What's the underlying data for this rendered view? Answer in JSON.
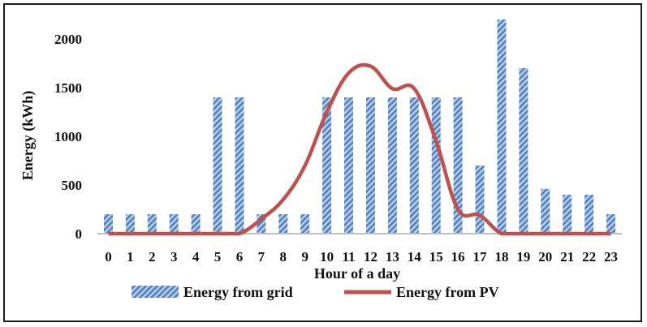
{
  "chart_data": {
    "type": "bar",
    "categories": [
      "0",
      "1",
      "2",
      "3",
      "4",
      "5",
      "6",
      "7",
      "8",
      "9",
      "10",
      "11",
      "12",
      "13",
      "14",
      "15",
      "16",
      "17",
      "18",
      "19",
      "20",
      "21",
      "22",
      "23"
    ],
    "series": [
      {
        "name": "Energy from grid",
        "kind": "bar",
        "color": "#4f81bd",
        "values": [
          200,
          200,
          200,
          200,
          200,
          1400,
          1400,
          200,
          200,
          200,
          1400,
          1400,
          1400,
          1400,
          1400,
          1400,
          1400,
          700,
          2200,
          1700,
          460,
          400,
          400,
          200
        ]
      },
      {
        "name": "Energy from PV",
        "kind": "line",
        "color": "#c0504d",
        "values": [
          0,
          0,
          0,
          0,
          0,
          0,
          0,
          150,
          350,
          700,
          1250,
          1650,
          1720,
          1490,
          1490,
          950,
          250,
          190,
          0,
          0,
          0,
          0,
          0,
          0
        ]
      }
    ],
    "xlabel": "Hour of a day",
    "ylabel": "Energy (kWh)",
    "yticks": [
      0,
      500,
      1000,
      1500,
      2000
    ],
    "ylim": [
      0,
      2250
    ],
    "legend_position": "bottom"
  }
}
